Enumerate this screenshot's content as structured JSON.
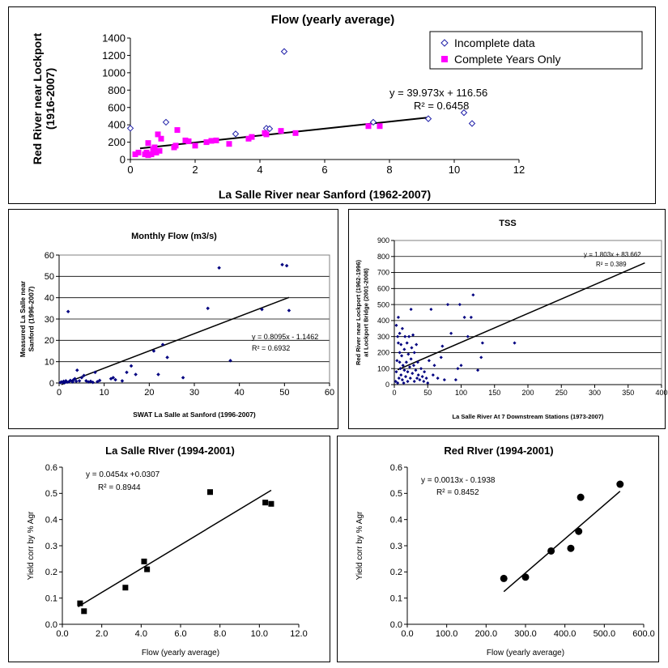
{
  "charts": [
    {
      "type": "scatter",
      "title": "Flow (yearly average)",
      "xlabel": "La Salle River near Sanford (1962-2007)",
      "ylabel_lines": [
        "Red River near Lockport",
        "(1916-2007)"
      ],
      "xlim": [
        0,
        12
      ],
      "xticks": [
        0,
        2,
        4,
        6,
        8,
        10,
        12
      ],
      "ylim": [
        0,
        1400
      ],
      "yticks": [
        0,
        200,
        400,
        600,
        800,
        1000,
        1200,
        1400
      ],
      "grid": false,
      "legend": "top-right",
      "legend_entries": [
        "Incomplete data",
        "Complete Years Only"
      ],
      "equation": "y = 39.973x + 116.56",
      "r2": "R² = 0.6458",
      "trendline": {
        "slope": 39.973,
        "intercept": 116.56,
        "x_range": [
          0.3,
          9.2
        ]
      },
      "series": [
        {
          "name": "Incomplete data",
          "marker": "diamond-open",
          "color": "#1f1fa8",
          "points": [
            [
              0.0,
              360
            ],
            [
              1.1,
              430
            ],
            [
              3.25,
              295
            ],
            [
              4.2,
              360
            ],
            [
              4.3,
              355
            ],
            [
              4.75,
              1245
            ],
            [
              7.5,
              430
            ],
            [
              9.2,
              470
            ],
            [
              10.3,
              540
            ],
            [
              10.55,
              415
            ]
          ]
        },
        {
          "name": "Complete Years Only",
          "marker": "square",
          "color": "#ff00ff",
          "points": [
            [
              0.15,
              60
            ],
            [
              0.25,
              80
            ],
            [
              0.45,
              60
            ],
            [
              0.5,
              80
            ],
            [
              0.55,
              50
            ],
            [
              0.55,
              190
            ],
            [
              0.65,
              60
            ],
            [
              0.7,
              120
            ],
            [
              0.75,
              140
            ],
            [
              0.8,
              80
            ],
            [
              0.85,
              290
            ],
            [
              0.9,
              100
            ],
            [
              0.95,
              240
            ],
            [
              1.35,
              140
            ],
            [
              1.4,
              160
            ],
            [
              1.45,
              340
            ],
            [
              1.7,
              220
            ],
            [
              1.8,
              210
            ],
            [
              2.0,
              160
            ],
            [
              2.35,
              200
            ],
            [
              2.5,
              215
            ],
            [
              2.65,
              220
            ],
            [
              3.05,
              180
            ],
            [
              3.65,
              240
            ],
            [
              3.75,
              260
            ],
            [
              4.15,
              305
            ],
            [
              4.2,
              290
            ],
            [
              4.65,
              330
            ],
            [
              5.1,
              305
            ],
            [
              7.35,
              385
            ],
            [
              7.7,
              385
            ]
          ]
        }
      ]
    },
    {
      "type": "scatter",
      "title": "Monthly Flow (m3/s)",
      "xlabel": "SWAT La Salle at Sanford (1996-2007)",
      "ylabel_lines": [
        "Measured La Salle near",
        "Sanford (1996-2007)"
      ],
      "xlim": [
        0,
        60
      ],
      "xticks": [
        0,
        10,
        20,
        30,
        40,
        50,
        60
      ],
      "ylim": [
        0,
        60
      ],
      "yticks": [
        0,
        10,
        20,
        30,
        40,
        50,
        60
      ],
      "grid": true,
      "equation": "y = 0.8095x - 1.1462",
      "r2": "R² = 0.6932",
      "trendline": {
        "slope": 0.8095,
        "intercept": -1.1462,
        "x_range": [
          0.5,
          51
        ]
      },
      "series": [
        {
          "marker": "diamond",
          "color": "#000080",
          "points": [
            [
              0.3,
              0.2
            ],
            [
              0.5,
              0.5
            ],
            [
              0.8,
              0.3
            ],
            [
              1,
              0.8
            ],
            [
              1.2,
              0.1
            ],
            [
              1.5,
              1
            ],
            [
              1.8,
              0.4
            ],
            [
              2,
              33.5
            ],
            [
              2.2,
              0.6
            ],
            [
              2.5,
              1.2
            ],
            [
              3,
              0.5
            ],
            [
              3.2,
              1.5
            ],
            [
              3.5,
              2
            ],
            [
              3.8,
              0.8
            ],
            [
              4,
              6
            ],
            [
              4.5,
              1
            ],
            [
              5,
              2.5
            ],
            [
              5.5,
              3.5
            ],
            [
              6,
              1
            ],
            [
              6.5,
              0.5
            ],
            [
              7,
              0.8
            ],
            [
              7.5,
              0.3
            ],
            [
              8,
              5
            ],
            [
              8.5,
              0.6
            ],
            [
              9,
              1.2
            ],
            [
              11.5,
              2
            ],
            [
              12,
              2.5
            ],
            [
              12.5,
              1.5
            ],
            [
              14,
              1
            ],
            [
              15,
              5
            ],
            [
              16,
              8
            ],
            [
              17,
              4
            ],
            [
              21,
              15
            ],
            [
              22,
              4
            ],
            [
              23,
              18
            ],
            [
              24,
              12
            ],
            [
              27.5,
              2.5
            ],
            [
              33,
              35
            ],
            [
              35.5,
              54
            ],
            [
              38,
              10.5
            ],
            [
              45,
              34.5
            ],
            [
              49.5,
              55.5
            ],
            [
              50.5,
              55
            ],
            [
              51,
              34
            ]
          ]
        }
      ]
    },
    {
      "type": "scatter",
      "title": "TSS",
      "xlabel": "La Salle River At 7 Downstream Stations (1973-2007)",
      "ylabel_lines": [
        "Red River near Lockport (1962-1996)",
        "at Lockport Bridge (2001-2008)"
      ],
      "xlim": [
        0,
        400
      ],
      "xticks": [
        0,
        50,
        100,
        150,
        200,
        250,
        300,
        350,
        400
      ],
      "ylim": [
        0,
        900
      ],
      "yticks": [
        0,
        100,
        200,
        300,
        400,
        500,
        600,
        700,
        800,
        900
      ],
      "grid": true,
      "equation": "y = 1.803x + 83.662",
      "r2": "R² = 0.389",
      "trendline": {
        "slope": 1.803,
        "intercept": 83.662,
        "x_range": [
          5,
          375
        ]
      },
      "series": [
        {
          "marker": "diamond",
          "color": "#000080",
          "points": [
            [
              2,
              20
            ],
            [
              3,
              80
            ],
            [
              4,
              150
            ],
            [
              5,
              10
            ],
            [
              6,
              260
            ],
            [
              6,
              420
            ],
            [
              7,
              40
            ],
            [
              8,
              200
            ],
            [
              8,
              320
            ],
            [
              9,
              100
            ],
            [
              10,
              60
            ],
            [
              10,
              250
            ],
            [
              11,
              180
            ],
            [
              12,
              30
            ],
            [
              12,
              350
            ],
            [
              13,
              120
            ],
            [
              14,
              10
            ],
            [
              15,
              220
            ],
            [
              15,
              90
            ],
            [
              16,
              300
            ],
            [
              17,
              50
            ],
            [
              18,
              140
            ],
            [
              19,
              260
            ],
            [
              20,
              20
            ],
            [
              20,
              80
            ],
            [
              21,
              190
            ],
            [
              22,
              300
            ],
            [
              23,
              110
            ],
            [
              24,
              40
            ],
            [
              25,
              160
            ],
            [
              26,
              230
            ],
            [
              27,
              70
            ],
            [
              28,
              310
            ],
            [
              29,
              120
            ],
            [
              30,
              20
            ],
            [
              30,
              200
            ],
            [
              32,
              90
            ],
            [
              33,
              250
            ],
            [
              34,
              40
            ],
            [
              35,
              140
            ],
            [
              36,
              60
            ],
            [
              38,
              30
            ],
            [
              40,
              100
            ],
            [
              42,
              50
            ],
            [
              44,
              20
            ],
            [
              45,
              80
            ],
            [
              48,
              40
            ],
            [
              50,
              10
            ],
            [
              52,
              150
            ],
            [
              55,
              470
            ],
            [
              58,
              60
            ],
            [
              60,
              120
            ],
            [
              65,
              40
            ],
            [
              70,
              170
            ],
            [
              72,
              240
            ],
            [
              75,
              30
            ],
            [
              80,
              500
            ],
            [
              85,
              320
            ],
            [
              92,
              30
            ],
            [
              95,
              100
            ],
            [
              98,
              500
            ],
            [
              100,
              120
            ],
            [
              105,
              420
            ],
            [
              110,
              300
            ],
            [
              115,
              420
            ],
            [
              118,
              560
            ],
            [
              125,
              90
            ],
            [
              130,
              170
            ],
            [
              132,
              260
            ],
            [
              180,
              260
            ],
            [
              25,
              470
            ],
            [
              5,
              300
            ],
            [
              3,
              370
            ],
            [
              8,
              140
            ]
          ]
        }
      ]
    },
    {
      "type": "scatter",
      "title": "La Salle RIver (1994-2001)",
      "xlabel": "Flow (yearly average)",
      "ylabel_lines": [
        "Yield corr by % Agr"
      ],
      "xlim": [
        0,
        12
      ],
      "xticks": [
        0,
        2,
        4,
        6,
        8,
        10,
        12
      ],
      "xtick_labels": [
        "0.0",
        "2.0",
        "4.0",
        "6.0",
        "8.0",
        "10.0",
        "12.0"
      ],
      "ylim": [
        0,
        0.6
      ],
      "yticks": [
        0,
        0.1,
        0.2,
        0.3,
        0.4,
        0.5,
        0.6
      ],
      "ytick_labels": [
        "0.0",
        "0.1",
        "0.2",
        "0.3",
        "0.4",
        "0.5",
        "0.6"
      ],
      "grid": false,
      "equation": "y = 0.0454x +0.0307",
      "r2": "R² = 0.8944",
      "trendline": {
        "slope": 0.0454,
        "intercept": 0.0307,
        "x_range": [
          0.8,
          10.6
        ]
      },
      "series": [
        {
          "marker": "square",
          "color": "#000000",
          "points": [
            [
              0.9,
              0.08
            ],
            [
              1.1,
              0.05
            ],
            [
              3.2,
              0.14
            ],
            [
              4.15,
              0.24
            ],
            [
              4.3,
              0.21
            ],
            [
              7.5,
              0.505
            ],
            [
              10.3,
              0.465
            ],
            [
              10.6,
              0.46
            ]
          ]
        }
      ]
    },
    {
      "type": "scatter",
      "title": "Red RIver (1994-2001)",
      "xlabel": "Flow (yearly average)",
      "ylabel_lines": [
        "Yield corr by % Agr"
      ],
      "xlim": [
        0,
        600
      ],
      "xticks": [
        0,
        100,
        200,
        300,
        400,
        500,
        600
      ],
      "xtick_labels": [
        "0.0",
        "100.0",
        "200.0",
        "300.0",
        "400.0",
        "500.0",
        "600.0"
      ],
      "ylim": [
        0,
        0.6
      ],
      "yticks": [
        0,
        0.1,
        0.2,
        0.3,
        0.4,
        0.5,
        0.6
      ],
      "ytick_labels": [
        "0.0",
        "0.1",
        "0.2",
        "0.3",
        "0.4",
        "0.5",
        "0.6"
      ],
      "grid": false,
      "equation": "y = 0.0013x - 0.1938",
      "r2": "R² = 0.8452",
      "trendline": {
        "slope": 0.0013,
        "intercept": -0.1938,
        "x_range": [
          245,
          540
        ]
      },
      "series": [
        {
          "marker": "circle",
          "color": "#000000",
          "points": [
            [
              245,
              0.175
            ],
            [
              300,
              0.18
            ],
            [
              365,
              0.28
            ],
            [
              415,
              0.29
            ],
            [
              435,
              0.355
            ],
            [
              440,
              0.485
            ],
            [
              540,
              0.535
            ]
          ]
        }
      ]
    }
  ]
}
